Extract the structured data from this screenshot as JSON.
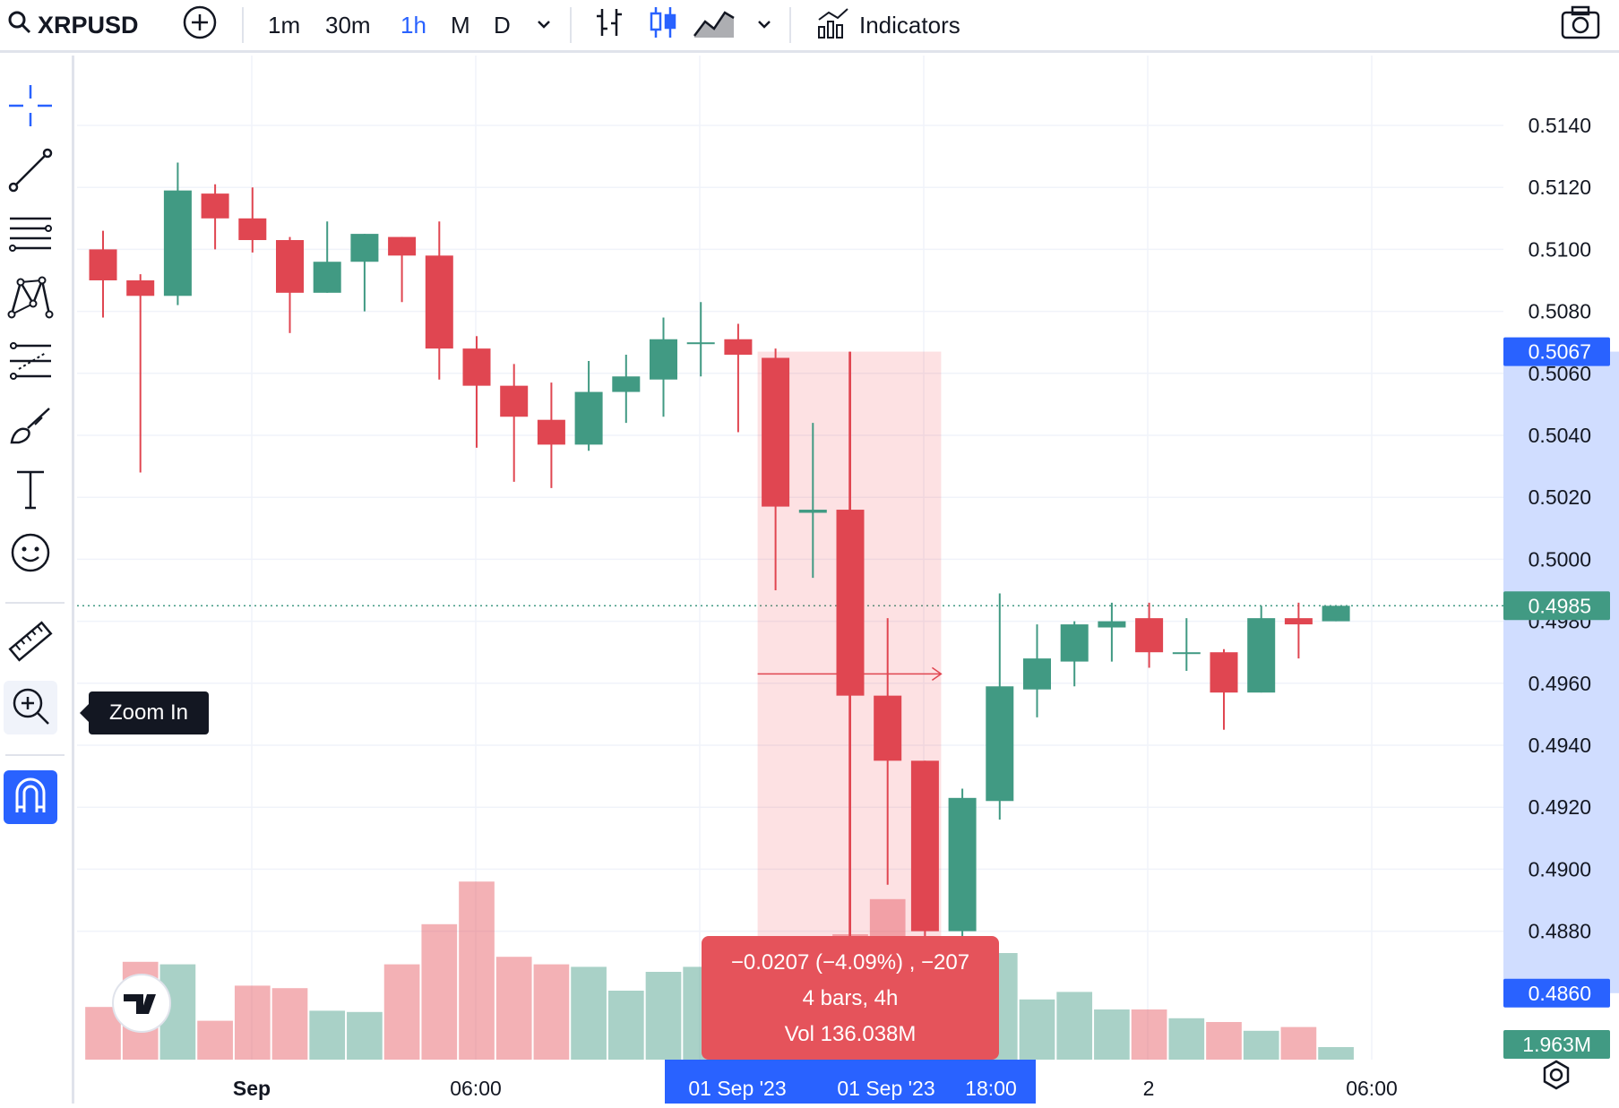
{
  "toolbar": {
    "symbol": "XRPUSD",
    "intervals": [
      "1m",
      "30m",
      "1h",
      "M",
      "D"
    ],
    "active_interval": "1h",
    "indicators_label": "Indicators"
  },
  "sidebar": {
    "tooltip": "Zoom In"
  },
  "colors": {
    "up": "#419a83",
    "down": "#e04651",
    "accent": "#2962ff",
    "range_fill": "rgba(242,54,69,0.15)",
    "volume_up": "rgba(65,154,131,0.45)",
    "volume_down": "rgba(229,83,91,0.45)"
  },
  "chart_data": {
    "type": "candlestick",
    "y_ticks": [
      "0.5140",
      "0.5120",
      "0.5100",
      "0.5080",
      "0.5060",
      "0.5040",
      "0.5020",
      "0.5000",
      "0.4980",
      "0.4960",
      "0.4940",
      "0.4920",
      "0.4900",
      "0.4880"
    ],
    "x_ticks": [
      "Sep",
      "06:00",
      "2",
      "06:00"
    ],
    "ylim": [
      0.4846,
      0.5155
    ],
    "candles": [
      {
        "o": 0.51,
        "h": 0.5106,
        "l": 0.5078,
        "c": 0.509
      },
      {
        "o": 0.509,
        "h": 0.5092,
        "l": 0.5028,
        "c": 0.5085
      },
      {
        "o": 0.5085,
        "h": 0.5128,
        "l": 0.5082,
        "c": 0.5119
      },
      {
        "o": 0.5118,
        "h": 0.5121,
        "l": 0.51,
        "c": 0.511
      },
      {
        "o": 0.511,
        "h": 0.512,
        "l": 0.5099,
        "c": 0.5103
      },
      {
        "o": 0.5103,
        "h": 0.5104,
        "l": 0.5073,
        "c": 0.5086
      },
      {
        "o": 0.5086,
        "h": 0.5109,
        "l": 0.5086,
        "c": 0.5096
      },
      {
        "o": 0.5096,
        "h": 0.5105,
        "l": 0.508,
        "c": 0.5105
      },
      {
        "o": 0.5104,
        "h": 0.5104,
        "l": 0.5083,
        "c": 0.5098
      },
      {
        "o": 0.5098,
        "h": 0.5109,
        "l": 0.5058,
        "c": 0.5068
      },
      {
        "o": 0.5068,
        "h": 0.5072,
        "l": 0.5036,
        "c": 0.5056
      },
      {
        "o": 0.5056,
        "h": 0.5063,
        "l": 0.5025,
        "c": 0.5046
      },
      {
        "o": 0.5045,
        "h": 0.5057,
        "l": 0.5023,
        "c": 0.5037
      },
      {
        "o": 0.5037,
        "h": 0.5064,
        "l": 0.5035,
        "c": 0.5054
      },
      {
        "o": 0.5054,
        "h": 0.5066,
        "l": 0.5044,
        "c": 0.5059
      },
      {
        "o": 0.5058,
        "h": 0.5078,
        "l": 0.5046,
        "c": 0.5071
      },
      {
        "o": 0.507,
        "h": 0.5083,
        "l": 0.5059,
        "c": 0.507
      },
      {
        "o": 0.5071,
        "h": 0.5076,
        "l": 0.5041,
        "c": 0.5066
      },
      {
        "o": 0.5065,
        "h": 0.5068,
        "l": 0.499,
        "c": 0.5017
      },
      {
        "o": 0.5015,
        "h": 0.5044,
        "l": 0.4994,
        "c": 0.5016
      },
      {
        "o": 0.5016,
        "h": 0.5067,
        "l": 0.4875,
        "c": 0.4956
      },
      {
        "o": 0.4956,
        "h": 0.4981,
        "l": 0.4895,
        "c": 0.4935
      },
      {
        "o": 0.4935,
        "h": 0.4935,
        "l": 0.4864,
        "c": 0.488
      },
      {
        "o": 0.488,
        "h": 0.4926,
        "l": 0.4875,
        "c": 0.4923
      },
      {
        "o": 0.4922,
        "h": 0.4989,
        "l": 0.4916,
        "c": 0.4959
      },
      {
        "o": 0.4958,
        "h": 0.4979,
        "l": 0.4949,
        "c": 0.4968
      },
      {
        "o": 0.4967,
        "h": 0.498,
        "l": 0.4959,
        "c": 0.4979
      },
      {
        "o": 0.4978,
        "h": 0.4986,
        "l": 0.4967,
        "c": 0.498
      },
      {
        "o": 0.4981,
        "h": 0.4986,
        "l": 0.4965,
        "c": 0.497
      },
      {
        "o": 0.497,
        "h": 0.4981,
        "l": 0.4964,
        "c": 0.497
      },
      {
        "o": 0.497,
        "h": 0.4971,
        "l": 0.4945,
        "c": 0.4957
      },
      {
        "o": 0.4957,
        "h": 0.4985,
        "l": 0.4957,
        "c": 0.4981
      },
      {
        "o": 0.4981,
        "h": 0.4986,
        "l": 0.4968,
        "c": 0.4979
      },
      {
        "o": 0.498,
        "h": 0.4985,
        "l": 0.498,
        "c": 0.4985
      }
    ],
    "volume": [
      0.42,
      0.78,
      0.76,
      0.31,
      0.59,
      0.57,
      0.39,
      0.38,
      0.76,
      1.08,
      1.42,
      0.82,
      0.76,
      0.74,
      0.55,
      0.7,
      0.74,
      0.6,
      0.8,
      0.55,
      1.0,
      1.28,
      0.8,
      0.7,
      0.85,
      0.48,
      0.54,
      0.4,
      0.4,
      0.33,
      0.3,
      0.23,
      0.26,
      0.1
    ],
    "current_price": "0.4985",
    "range_high": "0.5067",
    "range_low": "0.4860",
    "volume_label": "1.963M",
    "measure": {
      "line1": "−0.0207 (−4.09%) , −207",
      "line2": "4 bars, 4h",
      "line3": "Vol 136.038M"
    },
    "range_x_labels": [
      "01 Sep '23",
      "01 Sep '23",
      "18:00"
    ]
  }
}
